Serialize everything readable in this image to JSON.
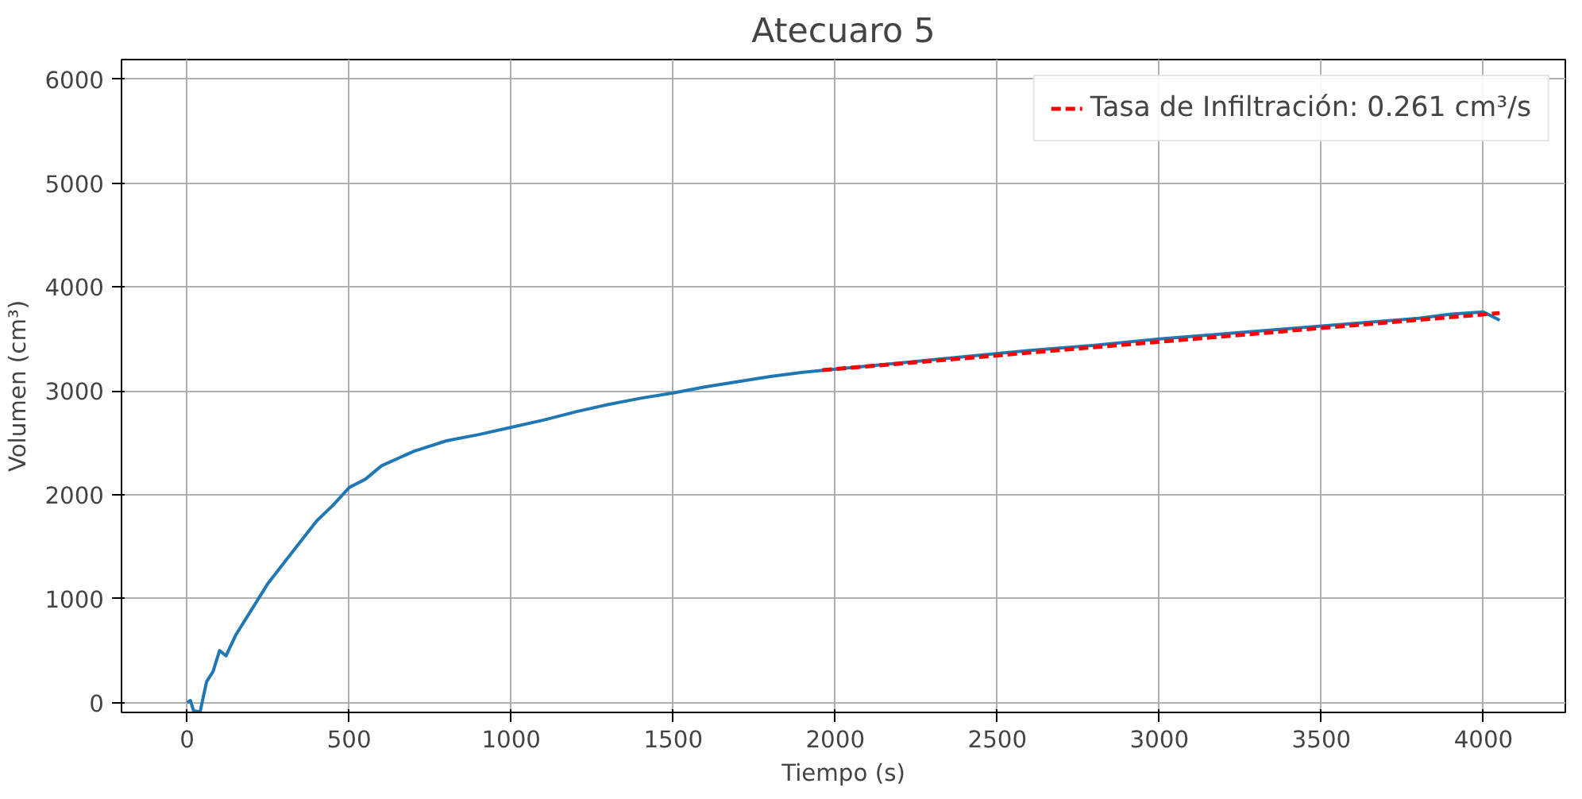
{
  "chart_data": {
    "type": "line",
    "title": "Atecuaro 5",
    "xlabel": "Tiempo (s)",
    "ylabel": "Volumen (cm³)",
    "xlim": [
      -202.5,
      4252.5
    ],
    "ylim": [
      -95,
      6190
    ],
    "xticks": [
      0,
      500,
      1000,
      1500,
      2000,
      2500,
      3000,
      3500,
      4000
    ],
    "yticks": [
      0,
      1000,
      2000,
      3000,
      4000,
      5000,
      6000
    ],
    "grid": true,
    "legend": "top right",
    "series": [
      {
        "color": "#1f77b4",
        "line_style": "solid",
        "x": [
          0,
          10,
          20,
          40,
          60,
          80,
          100,
          120,
          150,
          200,
          250,
          300,
          350,
          400,
          450,
          500,
          550,
          600,
          700,
          800,
          900,
          1000,
          1100,
          1200,
          1300,
          1400,
          1500,
          1600,
          1700,
          1800,
          1900,
          2000,
          2200,
          2400,
          2600,
          2800,
          3000,
          3200,
          3400,
          3600,
          3800,
          3900,
          4000,
          4050
        ],
        "values": [
          0,
          20,
          -80,
          -90,
          200,
          300,
          500,
          450,
          650,
          900,
          1150,
          1350,
          1550,
          1750,
          1900,
          2070,
          2150,
          2280,
          2420,
          2520,
          2580,
          2650,
          2720,
          2800,
          2870,
          2930,
          2980,
          3040,
          3090,
          3140,
          3180,
          3210,
          3270,
          3330,
          3390,
          3440,
          3500,
          3550,
          3600,
          3650,
          3700,
          3740,
          3760,
          3680
        ]
      },
      {
        "name": "Tasa de Infiltración: 0.261 cm³/s",
        "color": "#ff0000",
        "line_style": "dashed",
        "x": [
          1960,
          4050
        ],
        "values": [
          3200,
          3750
        ]
      }
    ]
  }
}
